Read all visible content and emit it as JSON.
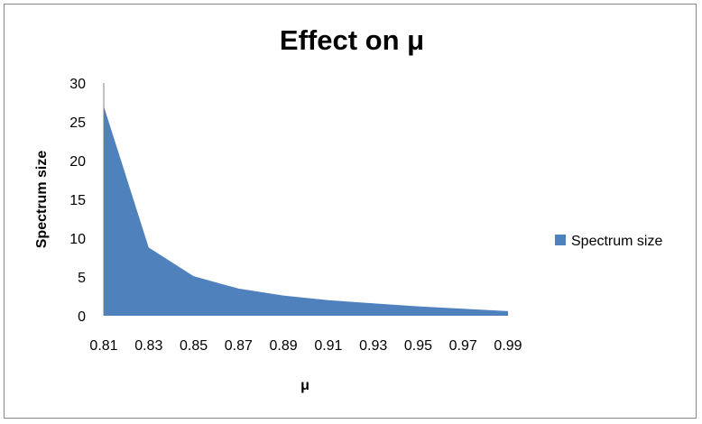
{
  "chart_data": {
    "type": "area",
    "title": "Effect on μ",
    "xlabel": "μ",
    "ylabel": "Spectrum size",
    "categories": [
      "0.81",
      "0.83",
      "0.85",
      "0.87",
      "0.89",
      "0.91",
      "0.93",
      "0.95",
      "0.97",
      "0.99"
    ],
    "series": [
      {
        "name": "Spectrum size",
        "color": "#4F81BD",
        "values": [
          27,
          8.8,
          5.1,
          3.5,
          2.6,
          2.0,
          1.6,
          1.2,
          0.9,
          0.6
        ]
      }
    ],
    "ylim": [
      0,
      30
    ],
    "yticks": [
      "0",
      "5",
      "10",
      "15",
      "20",
      "25",
      "30"
    ],
    "grid": false,
    "legend": "right"
  }
}
